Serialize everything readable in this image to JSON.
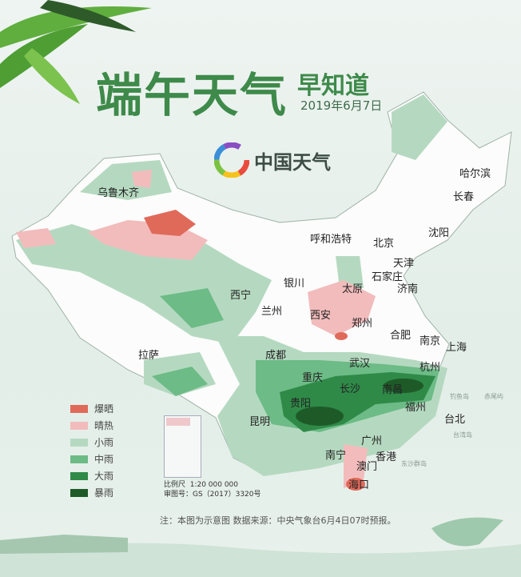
{
  "header": {
    "title": "端午天气",
    "subtitle": "早知道",
    "date": "2019年6月7日"
  },
  "brand": {
    "name": "中国天气",
    "logo_icon": "pinwheel-logo-icon"
  },
  "cities": [
    {
      "name": "乌鲁木齐"
    },
    {
      "name": "哈尔滨"
    },
    {
      "name": "长春"
    },
    {
      "name": "沈阳"
    },
    {
      "name": "呼和浩特"
    },
    {
      "name": "北京"
    },
    {
      "name": "天津"
    },
    {
      "name": "石家庄"
    },
    {
      "name": "济南"
    },
    {
      "name": "银川"
    },
    {
      "name": "西宁"
    },
    {
      "name": "太原"
    },
    {
      "name": "兰州"
    },
    {
      "name": "西安"
    },
    {
      "name": "郑州"
    },
    {
      "name": "合肥"
    },
    {
      "name": "南京"
    },
    {
      "name": "上海"
    },
    {
      "name": "拉萨"
    },
    {
      "name": "成都"
    },
    {
      "name": "武汉"
    },
    {
      "name": "杭州"
    },
    {
      "name": "重庆"
    },
    {
      "name": "长沙"
    },
    {
      "name": "南昌"
    },
    {
      "name": "贵阳"
    },
    {
      "name": "福州"
    },
    {
      "name": "昆明"
    },
    {
      "name": "台北"
    },
    {
      "name": "广州"
    },
    {
      "name": "南宁"
    },
    {
      "name": "香港"
    },
    {
      "name": "澳门"
    },
    {
      "name": "海口"
    }
  ],
  "islands": [
    "钓鱼岛",
    "赤尾屿",
    "台湾岛",
    "东沙群岛"
  ],
  "legend": [
    {
      "label": "爆晒",
      "color": "#e06a5a"
    },
    {
      "label": "晴热",
      "color": "#f2bcbc"
    },
    {
      "label": "小雨",
      "color": "#b5d9c0"
    },
    {
      "label": "中雨",
      "color": "#6dbb86"
    },
    {
      "label": "大雨",
      "color": "#2f8a48"
    },
    {
      "label": "暴雨",
      "color": "#1e5a28"
    }
  ],
  "scale": {
    "ratio": "比例尺  1:20 000 000",
    "approval": "审图号：GS（2017）3320号"
  },
  "note": "注：本图为示意图  数据来源：中央气象台6月4日07时预报。"
}
